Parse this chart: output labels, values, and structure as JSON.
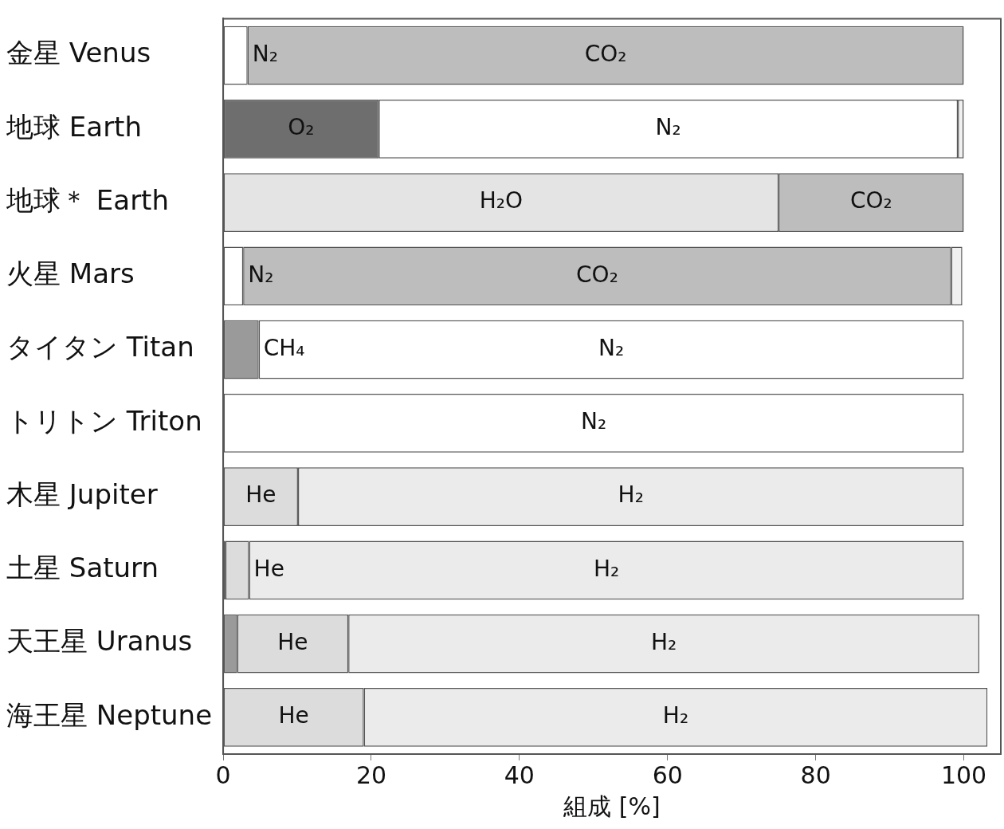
{
  "chart_data": {
    "type": "bar",
    "orientation": "horizontal",
    "stacked": true,
    "xlabel": "組成 [%]",
    "categories": [
      "金星 Venus",
      "地球 Earth",
      "地球＊ Earth",
      "火星 Mars",
      "タイタン Titan",
      "トリトン Triton",
      "木星 Jupiter",
      "土星 Saturn",
      "天王星 Uranus",
      "海王星 Neptune"
    ],
    "series": [
      {
        "values": [
          3.3,
          21.0,
          75,
          2.7,
          4.8,
          100,
          10.1,
          0.3,
          1.9,
          19
        ],
        "colors": [
          "#ffffff",
          "#6e6e6e",
          "#e4e4e4",
          "#ffffff",
          "#9a9a9a",
          "#ffffff",
          "#dcdcdc",
          "#555555",
          "#9a9a9a",
          "#dcdcdc"
        ],
        "value_labels": [
          "N₂",
          "O₂",
          "H₂O",
          "N₂",
          "CH₄",
          "N₂",
          "He",
          null,
          null,
          "He"
        ]
      },
      {
        "values": [
          96.7,
          78.2,
          25,
          95.6,
          95.2,
          null,
          89.9,
          3.2,
          15.0,
          84.2
        ],
        "colors": [
          "#bdbdbd",
          "#ffffff",
          "#bdbdbd",
          "#bdbdbd",
          "#ffffff",
          "#ffffff",
          "#ebebeb",
          "#dcdcdc",
          "#dcdcdc",
          "#ebebeb"
        ],
        "value_labels": [
          "CO₂",
          "N₂",
          "CO₂",
          "CO₂",
          "N₂",
          null,
          "H₂",
          "He",
          "He",
          "H₂"
        ]
      },
      {
        "values": [
          null,
          0.8,
          null,
          1.5,
          null,
          null,
          null,
          96.5,
          85.2,
          null
        ],
        "colors": [
          "#f0f0f0",
          "#f0f0f0",
          "#f0f0f0",
          "#f0f0f0",
          "#f0f0f0",
          "#f0f0f0",
          "#f0f0f0",
          "#ebebeb",
          "#ebebeb",
          "#f0f0f0"
        ],
        "value_labels": [
          null,
          null,
          null,
          null,
          null,
          null,
          null,
          "H₂",
          "H₂",
          null
        ]
      }
    ],
    "xlim": [
      0,
      105
    ],
    "xticks": [
      0,
      20,
      40,
      60,
      80,
      100
    ],
    "grid": false,
    "legend": false
  }
}
